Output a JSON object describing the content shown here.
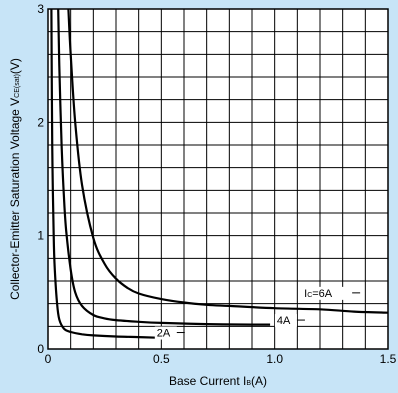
{
  "colors": {
    "background": "#c7e4f7",
    "plot_bg": "#ffffff",
    "ink": "#000000"
  },
  "chart_data": {
    "type": "line",
    "title": "",
    "xlabel": "Base Current I",
    "xlabel_sub": "B",
    "xlabel_unit": "(A)",
    "ylabel": "Collector-Emitter Saturation Voltage V",
    "ylabel_sub": "CE(sat)",
    "ylabel_unit": "(V)",
    "xlim": [
      0,
      1.5
    ],
    "ylim": [
      0,
      3
    ],
    "x_ticks": [
      {
        "value": 0,
        "label": "0"
      },
      {
        "value": 0.5,
        "label": "0.5"
      },
      {
        "value": 1.0,
        "label": "1.0"
      },
      {
        "value": 1.5,
        "label": "1.5"
      }
    ],
    "y_ticks": [
      {
        "value": 0,
        "label": "0"
      },
      {
        "value": 1,
        "label": "1"
      },
      {
        "value": 2,
        "label": "2"
      },
      {
        "value": 3,
        "label": "3"
      }
    ],
    "grid": true,
    "grid_divisions_x": 15,
    "grid_divisions_y": 15,
    "series": [
      {
        "name": "2A",
        "label_text": "2A",
        "x": [
          0.015,
          0.017,
          0.02,
          0.025,
          0.03,
          0.04,
          0.05,
          0.07,
          0.1,
          0.15,
          0.2,
          0.3,
          0.4,
          0.48
        ],
        "y": [
          3.0,
          2.2,
          1.6,
          1.0,
          0.7,
          0.4,
          0.26,
          0.18,
          0.15,
          0.13,
          0.12,
          0.11,
          0.105,
          0.1
        ],
        "label_at": [
          0.48,
          0.11
        ]
      },
      {
        "name": "4A",
        "label_text": "4A",
        "x": [
          0.045,
          0.05,
          0.06,
          0.07,
          0.08,
          0.1,
          0.12,
          0.15,
          0.2,
          0.25,
          0.3,
          0.4,
          0.5,
          0.7,
          0.9,
          0.98
        ],
        "y": [
          3.0,
          2.5,
          1.8,
          1.35,
          1.05,
          0.7,
          0.5,
          0.38,
          0.3,
          0.27,
          0.255,
          0.24,
          0.23,
          0.22,
          0.215,
          0.215
        ],
        "label_at": [
          1.01,
          0.22
        ]
      },
      {
        "name": "IC=6A",
        "label_text": "I",
        "label_sub": "C",
        "label_suffix": "=6A",
        "x": [
          0.09,
          0.1,
          0.12,
          0.15,
          0.2,
          0.25,
          0.3,
          0.35,
          0.4,
          0.5,
          0.6,
          0.7,
          0.8,
          1.0,
          1.2,
          1.35,
          1.5
        ],
        "y": [
          3.0,
          2.6,
          2.0,
          1.45,
          0.98,
          0.75,
          0.62,
          0.54,
          0.49,
          0.44,
          0.41,
          0.39,
          0.38,
          0.36,
          0.35,
          0.33,
          0.32
        ],
        "label_at": [
          1.13,
          0.46
        ]
      }
    ]
  }
}
